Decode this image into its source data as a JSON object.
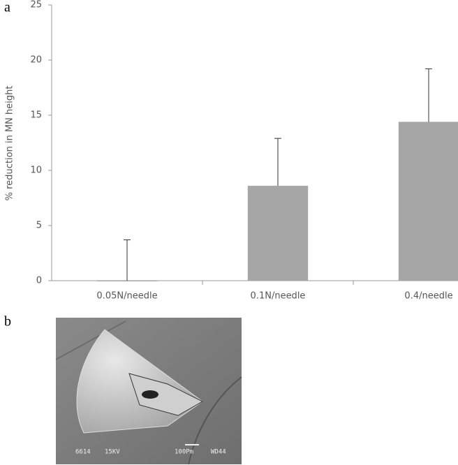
{
  "panel_labels": [
    "a",
    "b"
  ],
  "chart_data": {
    "type": "bar",
    "ylabel": "% reduction in MN height",
    "categories": [
      "0.05N/needle",
      "0.1N/needle",
      "0.4/needle"
    ],
    "values": [
      0,
      8.6,
      14.4
    ],
    "errors": [
      3.7,
      4.3,
      4.8
    ],
    "color": "#a6a6a6",
    "ylim": [
      0,
      25
    ],
    "yticks": [
      0,
      5,
      10,
      15,
      20,
      25
    ],
    "grid": false
  },
  "image_labels": [
    "6614",
    "15KV",
    "100Pm",
    "WD44"
  ]
}
